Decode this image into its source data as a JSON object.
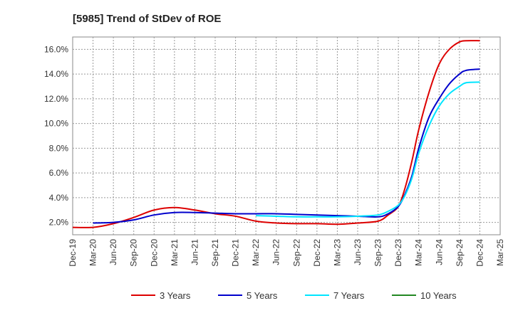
{
  "chart_data": {
    "type": "line",
    "title": "[5985]  Trend of StDev of ROE",
    "xlabel": "",
    "ylabel": "",
    "x_ticks": [
      "Dec-19",
      "Mar-20",
      "Jun-20",
      "Sep-20",
      "Dec-20",
      "Mar-21",
      "Jun-21",
      "Sep-21",
      "Dec-21",
      "Mar-22",
      "Jun-22",
      "Sep-22",
      "Dec-22",
      "Mar-23",
      "Jun-23",
      "Sep-23",
      "Dec-23",
      "Mar-24",
      "Jun-24",
      "Sep-24",
      "Dec-24",
      "Mar-25"
    ],
    "y_ticks": [
      "2.0%",
      "4.0%",
      "6.0%",
      "8.0%",
      "10.0%",
      "12.0%",
      "14.0%",
      "16.0%"
    ],
    "ylim": [
      1.0,
      17.0
    ],
    "grid": true,
    "legend_position": "bottom",
    "series": [
      {
        "name": "3 Years",
        "color": "#dd0000",
        "points": [
          [
            0,
            1.6
          ],
          [
            1,
            1.6
          ],
          [
            2,
            1.9
          ],
          [
            3,
            2.4
          ],
          [
            4,
            3.0
          ],
          [
            5,
            3.2
          ],
          [
            6,
            3.0
          ],
          [
            7,
            2.7
          ],
          [
            8,
            2.5
          ],
          [
            9,
            2.1
          ],
          [
            10,
            1.95
          ],
          [
            11,
            1.9
          ],
          [
            12,
            1.9
          ],
          [
            13,
            1.85
          ],
          [
            14,
            1.95
          ],
          [
            15,
            2.1
          ],
          [
            15.5,
            2.6
          ],
          [
            16,
            3.3
          ],
          [
            16.33,
            4.8
          ],
          [
            16.67,
            7.0
          ],
          [
            17,
            9.5
          ],
          [
            17.5,
            12.5
          ],
          [
            18,
            14.8
          ],
          [
            18.5,
            16.0
          ],
          [
            19,
            16.6
          ],
          [
            19.33,
            16.7
          ],
          [
            20,
            16.7
          ]
        ]
      },
      {
        "name": "5 Years",
        "color": "#0000cc",
        "points": [
          [
            1,
            1.95
          ],
          [
            2,
            2.0
          ],
          [
            3,
            2.2
          ],
          [
            4,
            2.6
          ],
          [
            5,
            2.8
          ],
          [
            6,
            2.8
          ],
          [
            7,
            2.75
          ],
          [
            8,
            2.7
          ],
          [
            9,
            2.7
          ],
          [
            10,
            2.7
          ],
          [
            11,
            2.65
          ],
          [
            12,
            2.6
          ],
          [
            13,
            2.55
          ],
          [
            14,
            2.5
          ],
          [
            15,
            2.45
          ],
          [
            15.5,
            2.7
          ],
          [
            16,
            3.3
          ],
          [
            16.33,
            4.3
          ],
          [
            16.67,
            5.8
          ],
          [
            17,
            8.0
          ],
          [
            17.5,
            10.5
          ],
          [
            18,
            12.0
          ],
          [
            18.5,
            13.2
          ],
          [
            19,
            14.0
          ],
          [
            19.33,
            14.3
          ],
          [
            20,
            14.4
          ]
        ]
      },
      {
        "name": "7 Years",
        "color": "#00e5ff",
        "points": [
          [
            9,
            2.55
          ],
          [
            10,
            2.5
          ],
          [
            11,
            2.45
          ],
          [
            12,
            2.45
          ],
          [
            13,
            2.45
          ],
          [
            14,
            2.5
          ],
          [
            15,
            2.6
          ],
          [
            15.5,
            2.9
          ],
          [
            16,
            3.4
          ],
          [
            16.33,
            4.2
          ],
          [
            16.67,
            5.6
          ],
          [
            17,
            7.6
          ],
          [
            17.5,
            9.8
          ],
          [
            18,
            11.4
          ],
          [
            18.5,
            12.4
          ],
          [
            19,
            13.0
          ],
          [
            19.33,
            13.3
          ],
          [
            20,
            13.35
          ]
        ]
      },
      {
        "name": "10 Years",
        "color": "#228822",
        "points": []
      }
    ]
  }
}
